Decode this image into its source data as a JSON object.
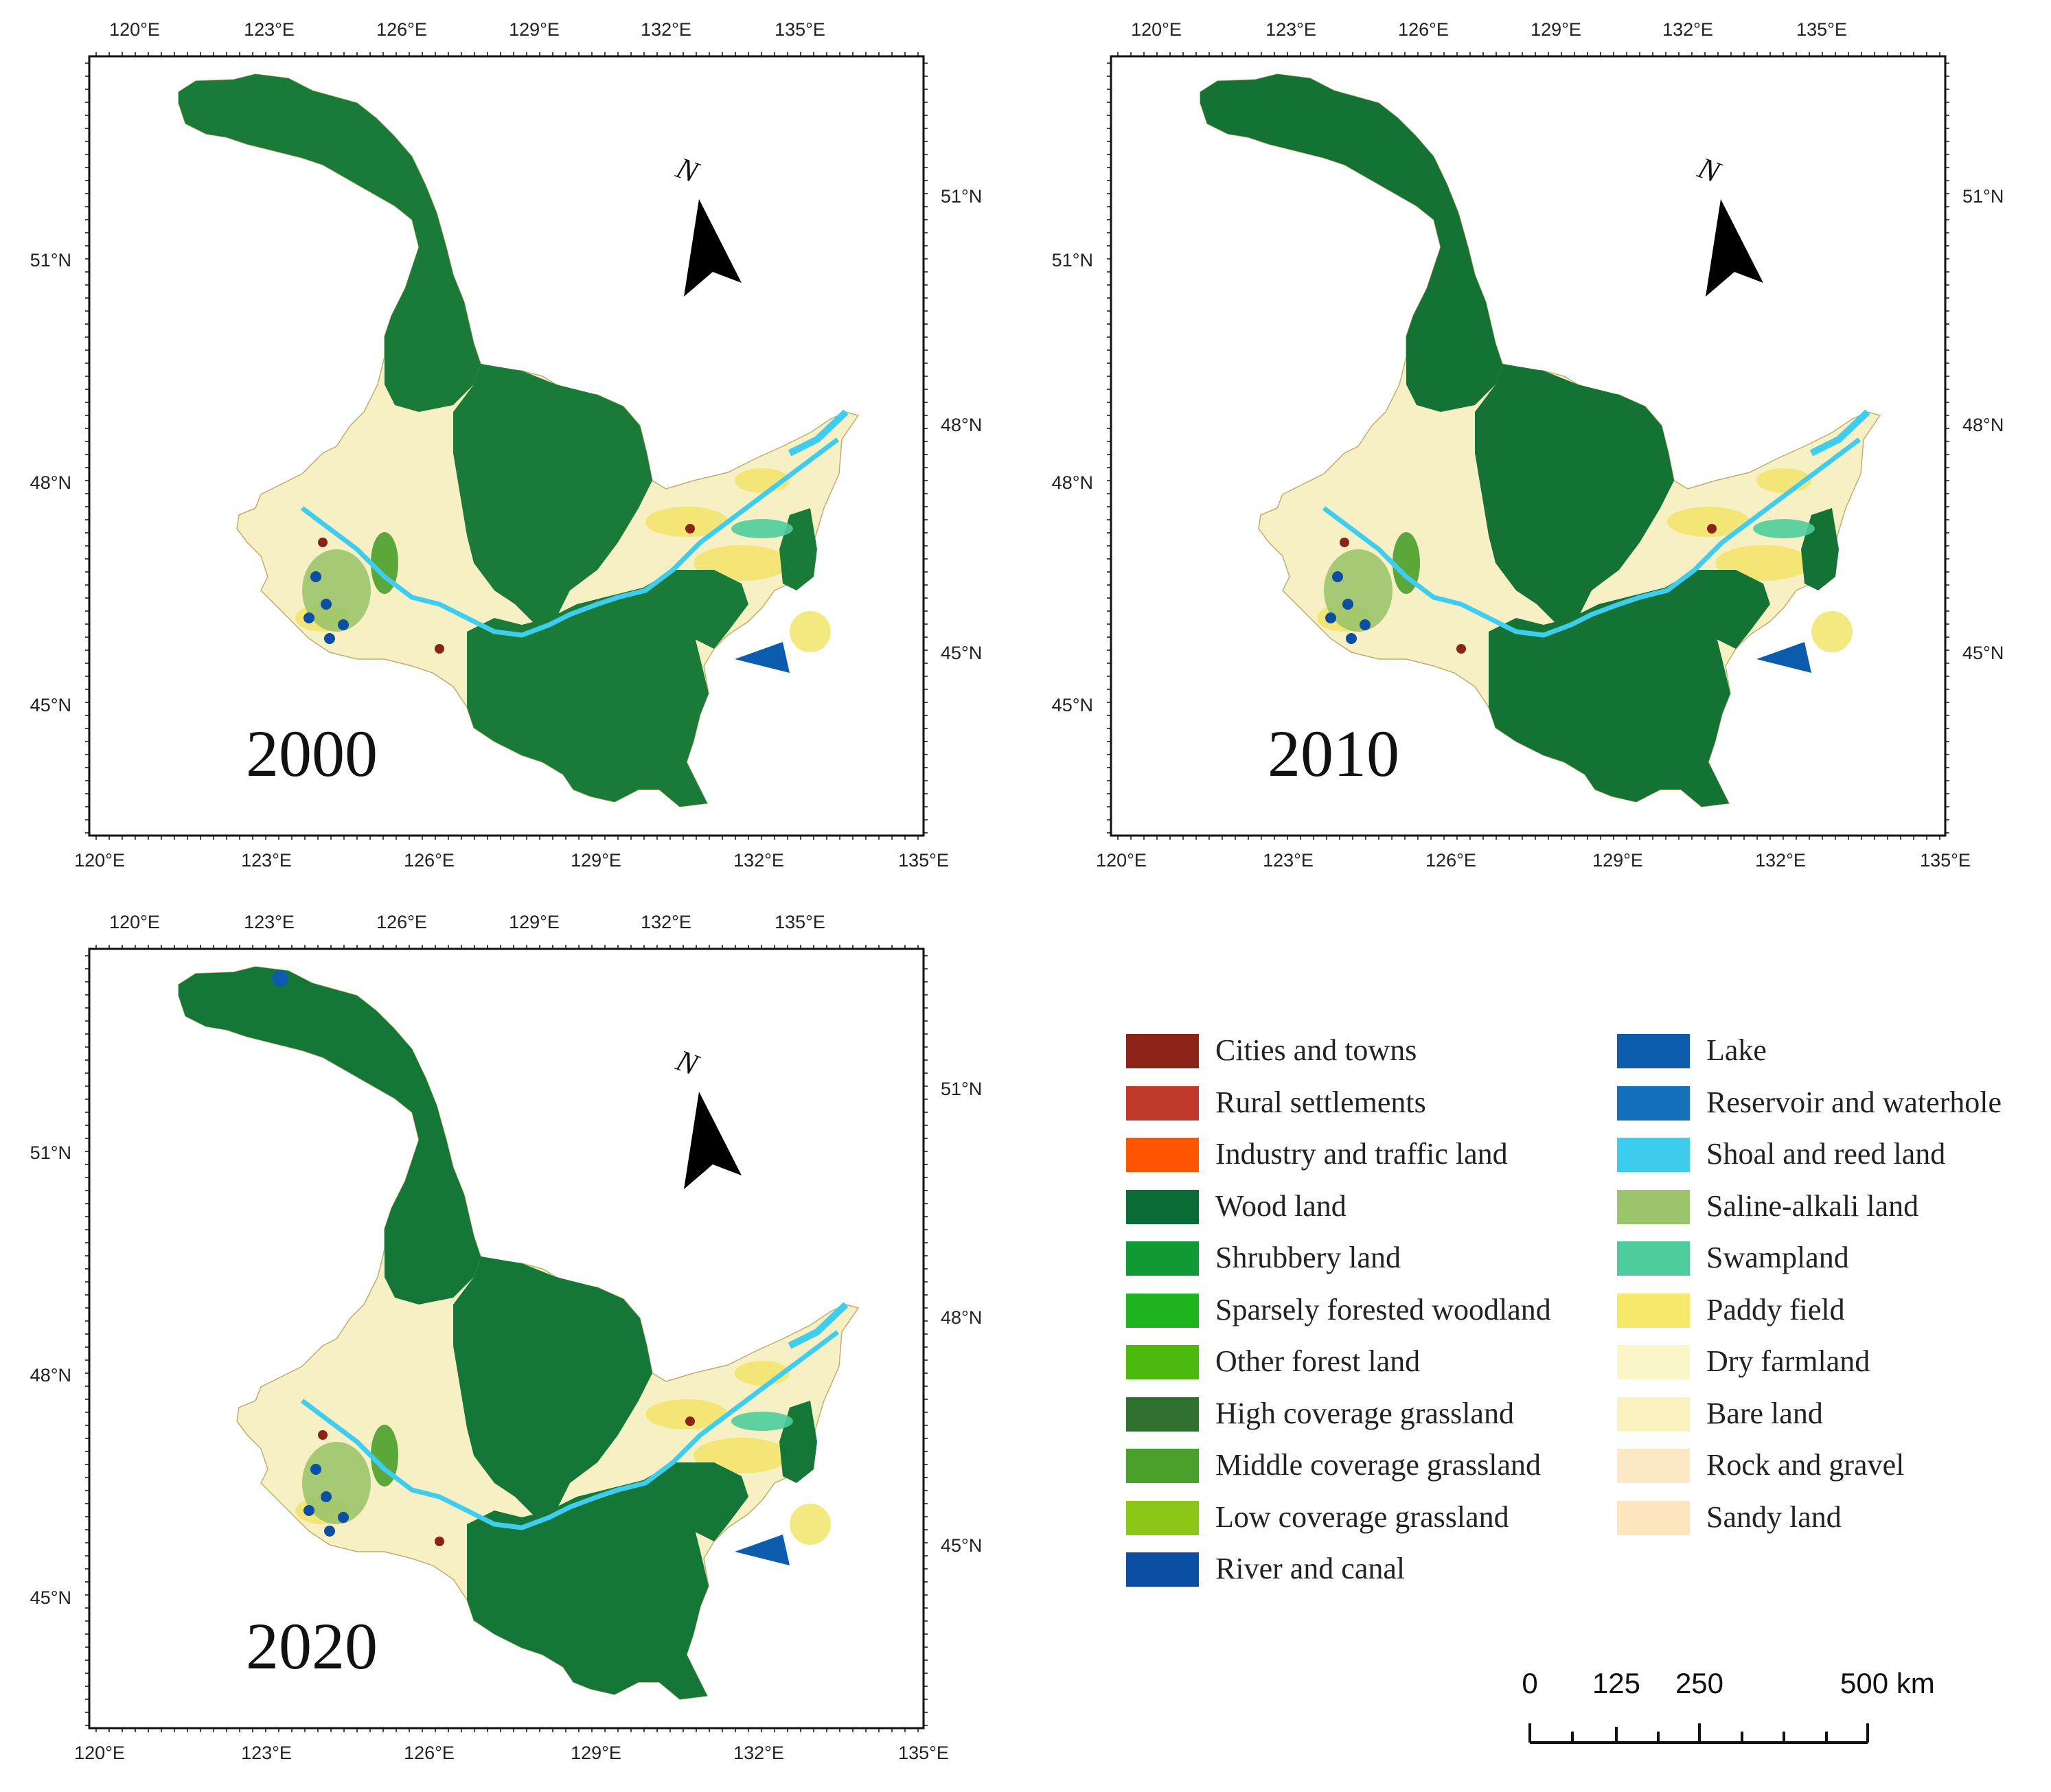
{
  "maps": [
    {
      "year": "2000",
      "top_lon_labels": [
        "120°E",
        "123°E",
        "126°E",
        "129°E",
        "132°E",
        "135°E"
      ],
      "bottom_lon_labels": [
        "120°E",
        "123°E",
        "126°E",
        "129°E",
        "132°E",
        "135°E"
      ],
      "left_lat_labels": [
        "51°N",
        "48°N",
        "45°N"
      ],
      "right_lat_labels": [
        "51°N",
        "48°N",
        "45°N"
      ],
      "north_label": "N"
    },
    {
      "year": "2010",
      "top_lon_labels": [
        "120°E",
        "123°E",
        "126°E",
        "129°E",
        "132°E",
        "135°E"
      ],
      "bottom_lon_labels": [
        "120°E",
        "123°E",
        "126°E",
        "129°E",
        "132°E",
        "135°E"
      ],
      "left_lat_labels": [
        "51°N",
        "48°N",
        "45°N"
      ],
      "right_lat_labels": [
        "51°N",
        "48°N",
        "45°N"
      ],
      "north_label": "N"
    },
    {
      "year": "2020",
      "top_lon_labels": [
        "120°E",
        "123°E",
        "126°E",
        "129°E",
        "132°E",
        "135°E"
      ],
      "bottom_lon_labels": [
        "120°E",
        "123°E",
        "126°E",
        "129°E",
        "132°E",
        "135°E"
      ],
      "left_lat_labels": [
        "51°N",
        "48°N",
        "45°N"
      ],
      "right_lat_labels": [
        "51°N",
        "48°N",
        "45°N"
      ],
      "north_label": "N"
    }
  ],
  "legend": {
    "left_column": [
      {
        "label": "Cities and towns",
        "color": "#8b2318"
      },
      {
        "label": "Rural settlements",
        "color": "#c0392b"
      },
      {
        "label": "Industry and traffic land",
        "color": "#ff5500"
      },
      {
        "label": "Wood land",
        "color": "#0a6b35"
      },
      {
        "label": "Shrubbery land",
        "color": "#0f9a34"
      },
      {
        "label": "Sparsely forested woodland",
        "color": "#1fb41f"
      },
      {
        "label": "Other forest land",
        "color": "#4cba0c"
      },
      {
        "label": "High coverage grassland",
        "color": "#2d7030"
      },
      {
        "label": "Middle coverage grassland",
        "color": "#4a9e2a"
      },
      {
        "label": "Low coverage grassland",
        "color": "#8bc516"
      },
      {
        "label": "River and canal",
        "color": "#0b4ea2"
      }
    ],
    "right_column": [
      {
        "label": "Lake",
        "color": "#0b5cad"
      },
      {
        "label": "Reservoir and waterhole",
        "color": "#1470bd"
      },
      {
        "label": "Shoal and reed land",
        "color": "#3fcdef"
      },
      {
        "label": "Saline-alkali land",
        "color": "#9cc46c"
      },
      {
        "label": "Swampland",
        "color": "#4fcc9c"
      },
      {
        "label": "Paddy field",
        "color": "#f5e86a"
      },
      {
        "label": "Dry farmland",
        "color": "#fbf6c8"
      },
      {
        "label": "Bare land",
        "color": "#fbf2c2"
      },
      {
        "label": "Rock and gravel",
        "color": "#fde8c6"
      },
      {
        "label": "Sandy land",
        "color": "#fde5bd"
      }
    ]
  },
  "scale_bar": {
    "labels": [
      "0",
      "125",
      "250",
      "500 km"
    ]
  }
}
